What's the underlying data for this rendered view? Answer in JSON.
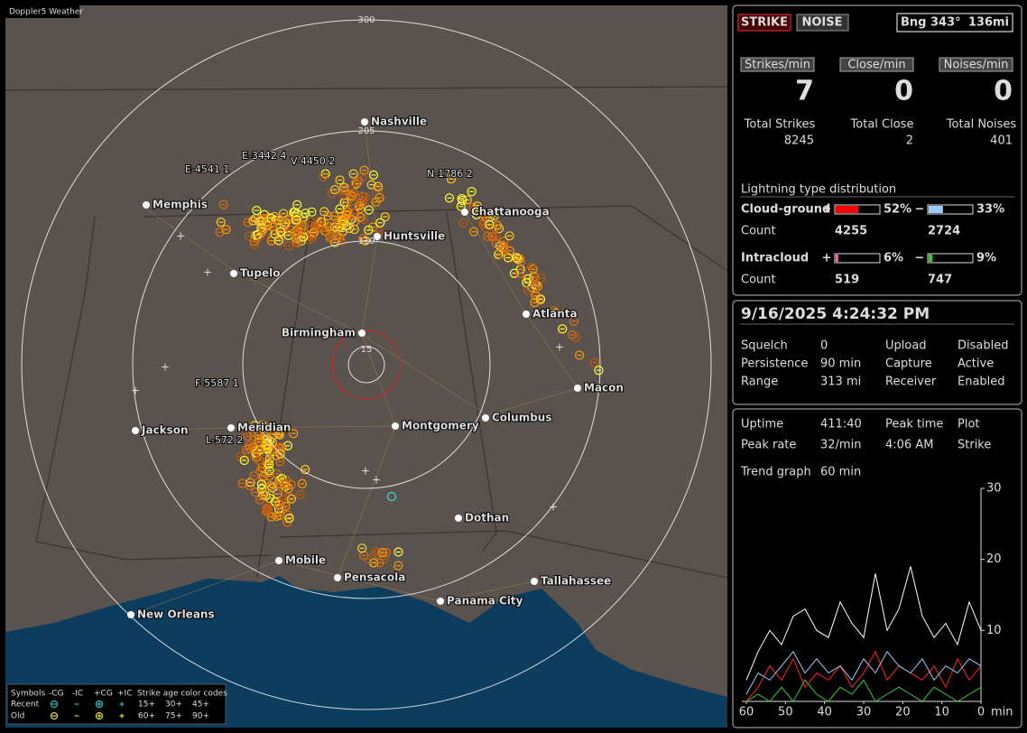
{
  "map": {
    "title": "Doppler5 Weather",
    "range_labels": [
      "300",
      "205",
      "110",
      "15"
    ],
    "cities": [
      "Nashville",
      "Memphis",
      "Chattanooga",
      "Huntsville",
      "Tupelo",
      "Atlanta",
      "Birmingham",
      "Macon",
      "Jackson",
      "Meridian",
      "Montgomery",
      "Columbus",
      "Dothan",
      "Mobile",
      "Pensacola",
      "Tallahassee",
      "Panama City",
      "New Orleans"
    ],
    "strike_tags": [
      "E-4541 1",
      "E-3442 4",
      "V-4450 2",
      "N-1786 2",
      "F-5587 1",
      "L-572 2"
    ],
    "legend": {
      "header": [
        "Symbols",
        "-CG",
        "-IC",
        "+CG",
        "+IC",
        "Strike age color codes"
      ],
      "rows": [
        "Recent",
        "Old"
      ],
      "ages": [
        "15+",
        "30+",
        "45+",
        "60+",
        "75+",
        "90+"
      ]
    }
  },
  "status": {
    "strike": "STRIKE",
    "noise": "NOISE",
    "bearing": "Bng 343°",
    "distance": "136mi"
  },
  "rates": [
    {
      "label": "Strikes/min",
      "value": 7
    },
    {
      "label": "Close/min",
      "value": 0
    },
    {
      "label": "Noises/min",
      "value": 0
    }
  ],
  "totals": [
    {
      "label": "Total Strikes",
      "value": 8245
    },
    {
      "label": "Total Close",
      "value": 2
    },
    {
      "label": "Total Noises",
      "value": 401
    }
  ],
  "distribution": {
    "title": "Lightning type distribution",
    "signs": [
      "+",
      "−"
    ],
    "count_label": "Count",
    "rows": [
      {
        "name": "Cloud-ground",
        "plus": {
          "value": 52,
          "label": "52%"
        },
        "minus": {
          "value": 33,
          "label": "33%"
        },
        "plus_count": 4255,
        "minus_count": 2724
      },
      {
        "name": "Intracloud",
        "plus": {
          "value": 6,
          "label": "6%"
        },
        "minus": {
          "value": 9,
          "label": "9%"
        },
        "plus_count": 519,
        "minus_count": 747
      }
    ]
  },
  "datetime": "9/16/2025 4:24:32 PM",
  "settings": [
    {
      "label": "Squelch",
      "value": 0
    },
    {
      "label": "Upload",
      "value": "Disabled"
    },
    {
      "label": "Persistence",
      "value": "90 min"
    },
    {
      "label": "Capture",
      "value": "Active"
    },
    {
      "label": "Range",
      "value": "313 mi"
    },
    {
      "label": "Receiver",
      "value": "Enabled"
    }
  ],
  "stats": [
    {
      "label": "Uptime",
      "value": "411:40"
    },
    {
      "label": "Peak time",
      "value": "4:06 AM"
    },
    {
      "label": "Plot",
      "value": "Strike"
    },
    {
      "label": "Peak rate",
      "value": "32/min"
    }
  ],
  "trend": {
    "label": "Trend graph",
    "value": "60 min"
  },
  "chart_data": {
    "type": "line",
    "x_label": "min",
    "x": [
      60,
      57,
      54,
      51,
      48,
      45,
      42,
      39,
      36,
      33,
      30,
      27,
      24,
      21,
      18,
      15,
      12,
      9,
      6,
      3,
      0
    ],
    "xlim": [
      60,
      0
    ],
    "xticks": [
      60,
      50,
      40,
      30,
      20,
      10,
      0
    ],
    "ylim": [
      0,
      30
    ],
    "yticks": [
      10,
      20,
      30
    ],
    "series": [
      {
        "color": "#ffffff",
        "values": [
          3,
          7,
          10,
          8,
          12,
          13,
          10,
          9,
          14,
          11,
          9,
          18,
          10,
          13,
          19,
          12,
          9,
          11,
          8,
          14,
          10
        ]
      },
      {
        "color": "#99ccff",
        "values": [
          1,
          4,
          3,
          5,
          7,
          4,
          6,
          4,
          5,
          3,
          6,
          4,
          7,
          5,
          4,
          6,
          3,
          5,
          4,
          6,
          5
        ]
      },
      {
        "color": "#ff2222",
        "values": [
          0,
          2,
          5,
          3,
          6,
          2,
          4,
          3,
          5,
          2,
          4,
          7,
          3,
          5,
          4,
          3,
          5,
          2,
          6,
          3,
          5
        ]
      },
      {
        "color": "#33cc33",
        "values": [
          0,
          1,
          0,
          2,
          0,
          3,
          1,
          0,
          2,
          1,
          3,
          0,
          1,
          2,
          1,
          0,
          2,
          1,
          0,
          1,
          2
        ]
      }
    ]
  }
}
